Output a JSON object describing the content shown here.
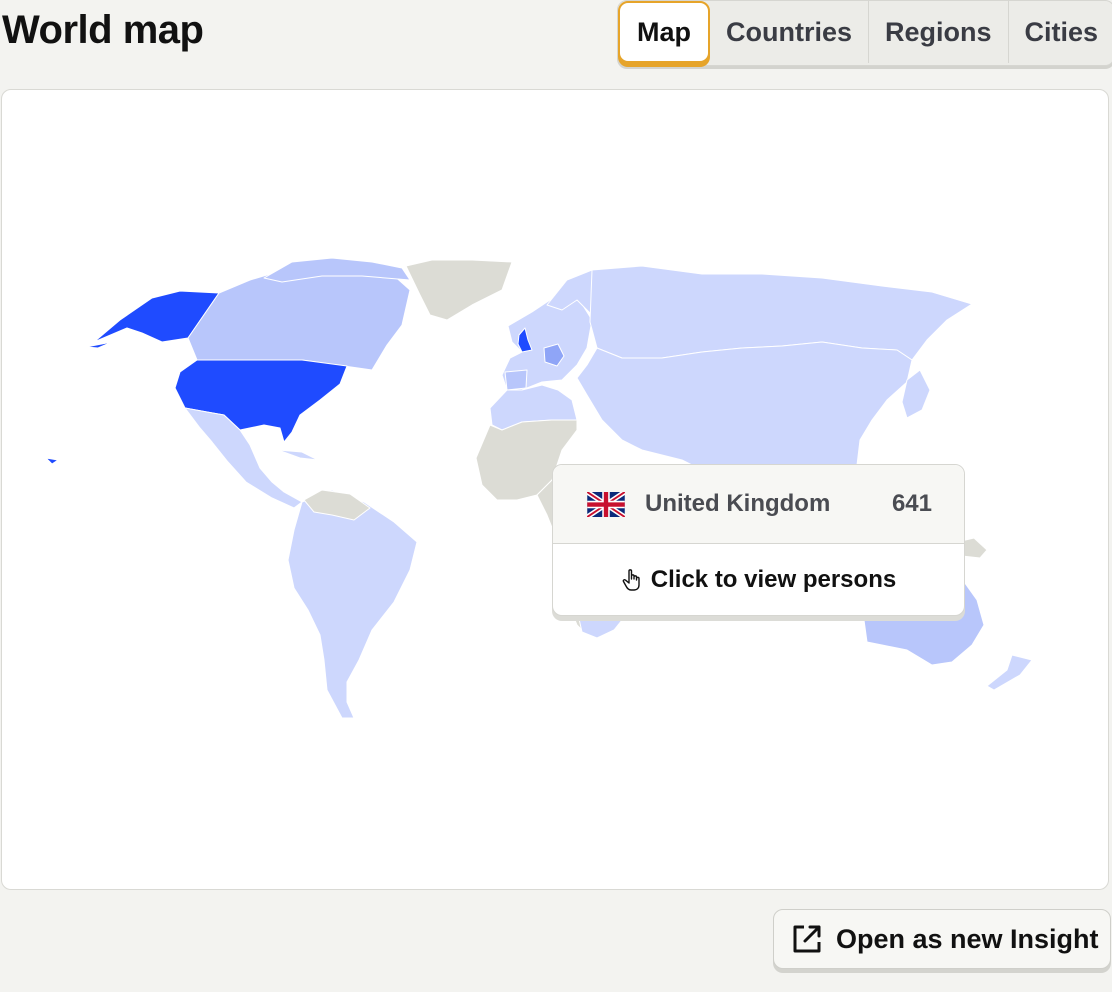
{
  "page": {
    "title": "World map"
  },
  "tabs": [
    {
      "label": "Map",
      "active": true
    },
    {
      "label": "Countries",
      "active": false
    },
    {
      "label": "Regions",
      "active": false
    },
    {
      "label": "Cities",
      "active": false
    }
  ],
  "colors": {
    "accent_tab": "#e6a42a",
    "country_max": "#1f4bff",
    "country_high": "#b8c6fb",
    "country_low": "#cdd7fd",
    "country_nodata": "#dcdcd5"
  },
  "tooltip": {
    "flag_icon": "uk-flag-icon",
    "country": "United Kingdom",
    "count": "641",
    "action_icon": "pointer-hand-icon",
    "action": "Click to view persons"
  },
  "footer": {
    "open_icon": "external-link-icon",
    "open_label": "Open as new Insight"
  }
}
